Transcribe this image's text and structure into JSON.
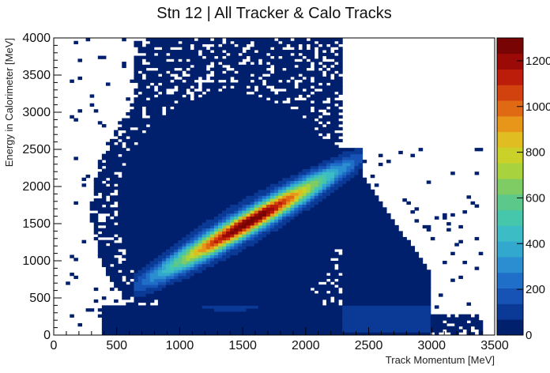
{
  "chart_data": {
    "type": "heatmap",
    "title": "Stn 12 | All Tracker & Calo Tracks",
    "xlabel": "Track Momentum [MeV]",
    "ylabel": "Energy in Calorimeter [MeV]",
    "xlim": [
      0,
      3500
    ],
    "ylim": [
      0,
      4000
    ],
    "x_ticks": [
      "0",
      "500",
      "1000",
      "1500",
      "2000",
      "2500",
      "3000",
      "3500"
    ],
    "y_ticks": [
      "0",
      "500",
      "1000",
      "1500",
      "2000",
      "2500",
      "3000",
      "3500",
      "4000"
    ],
    "colorbar": {
      "range": [
        0,
        1300
      ],
      "ticks": [
        "0",
        "200",
        "400",
        "600",
        "800",
        "1000",
        "1200"
      ],
      "colors": [
        "#00206e",
        "#0a3a96",
        "#1653b4",
        "#1f6fc8",
        "#2a8ed0",
        "#33a8cf",
        "#3cbcc4",
        "#46c6ab",
        "#5cc98a",
        "#80cc64",
        "#a8d33e",
        "#cad22a",
        "#e0bd20",
        "#e8961a",
        "#e06a14",
        "#d2420e",
        "#bc1c0a",
        "#9c0a08",
        "#780404"
      ]
    },
    "features": {
      "diagonal_band": {
        "x_start": 700,
        "y_start": 700,
        "x_end": 2300,
        "y_end": 2300,
        "peak_count": 1250
      },
      "track_momentum_cutoff_above_y": {
        "x": 2300,
        "y": 2500
      },
      "high_momentum_cutoff": 3000,
      "low_energy_tail_x_max": 3400
    },
    "grid": false,
    "legend": "colorbar-right"
  }
}
